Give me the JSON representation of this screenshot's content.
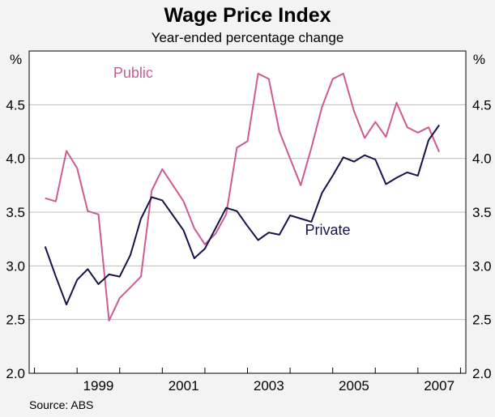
{
  "chart_data": {
    "type": "line",
    "title": "Wage Price Index",
    "subtitle": "Year-ended percentage change",
    "y_unit": "%",
    "source": "Source: ABS",
    "ylim": [
      2.0,
      5.0
    ],
    "y_ticks": [
      "2.0",
      "2.5",
      "3.0",
      "3.5",
      "4.0",
      "4.5"
    ],
    "xlim": [
      1997.875,
      2008.125
    ],
    "x_ticks": [
      {
        "label": "1999",
        "value": 1999.0
      },
      {
        "label": "2001",
        "value": 2001.0
      },
      {
        "label": "2003",
        "value": 2003.0
      },
      {
        "label": "2005",
        "value": 2005.0
      },
      {
        "label": "2007",
        "value": 2007.0
      }
    ],
    "grid": true,
    "series": [
      {
        "name": "Public",
        "color": "#cc5b92",
        "label_position": [
          1999.85,
          4.75
        ],
        "points": [
          [
            1998.25,
            3.63
          ],
          [
            1998.5,
            3.6
          ],
          [
            1998.75,
            4.07
          ],
          [
            1999.0,
            3.91
          ],
          [
            1999.25,
            3.51
          ],
          [
            1999.5,
            3.48
          ],
          [
            1999.75,
            2.49
          ],
          [
            2000.0,
            2.7
          ],
          [
            2000.25,
            2.8
          ],
          [
            2000.5,
            2.9
          ],
          [
            2000.75,
            3.7
          ],
          [
            2001.0,
            3.9
          ],
          [
            2001.25,
            3.75
          ],
          [
            2001.5,
            3.6
          ],
          [
            2001.75,
            3.35
          ],
          [
            2002.0,
            3.2
          ],
          [
            2002.25,
            3.3
          ],
          [
            2002.5,
            3.48
          ],
          [
            2002.75,
            4.1
          ],
          [
            2003.0,
            4.16
          ],
          [
            2003.25,
            4.79
          ],
          [
            2003.5,
            4.74
          ],
          [
            2003.75,
            4.25
          ],
          [
            2004.0,
            4.0
          ],
          [
            2004.25,
            3.75
          ],
          [
            2004.5,
            4.1
          ],
          [
            2004.75,
            4.48
          ],
          [
            2005.0,
            4.74
          ],
          [
            2005.25,
            4.79
          ],
          [
            2005.5,
            4.44
          ],
          [
            2005.75,
            4.19
          ],
          [
            2006.0,
            4.34
          ],
          [
            2006.25,
            4.2
          ],
          [
            2006.5,
            4.52
          ],
          [
            2006.75,
            4.29
          ],
          [
            2007.0,
            4.24
          ],
          [
            2007.25,
            4.29
          ],
          [
            2007.5,
            4.06
          ]
        ]
      },
      {
        "name": "Private",
        "color": "#14144a",
        "label_position": [
          2004.35,
          3.29
        ],
        "points": [
          [
            1998.25,
            3.18
          ],
          [
            1998.5,
            2.9
          ],
          [
            1998.75,
            2.64
          ],
          [
            1999.0,
            2.87
          ],
          [
            1999.25,
            2.97
          ],
          [
            1999.5,
            2.83
          ],
          [
            1999.75,
            2.92
          ],
          [
            2000.0,
            2.9
          ],
          [
            2000.25,
            3.1
          ],
          [
            2000.5,
            3.44
          ],
          [
            2000.75,
            3.64
          ],
          [
            2001.0,
            3.61
          ],
          [
            2001.25,
            3.47
          ],
          [
            2001.5,
            3.33
          ],
          [
            2001.75,
            3.07
          ],
          [
            2002.0,
            3.16
          ],
          [
            2002.25,
            3.35
          ],
          [
            2002.5,
            3.54
          ],
          [
            2002.75,
            3.51
          ],
          [
            2003.0,
            3.37
          ],
          [
            2003.25,
            3.24
          ],
          [
            2003.5,
            3.31
          ],
          [
            2003.75,
            3.29
          ],
          [
            2004.0,
            3.47
          ],
          [
            2004.25,
            3.44
          ],
          [
            2004.5,
            3.41
          ],
          [
            2004.75,
            3.68
          ],
          [
            2005.0,
            3.84
          ],
          [
            2005.25,
            4.01
          ],
          [
            2005.5,
            3.97
          ],
          [
            2005.75,
            4.03
          ],
          [
            2006.0,
            3.99
          ],
          [
            2006.25,
            3.76
          ],
          [
            2006.5,
            3.82
          ],
          [
            2006.75,
            3.87
          ],
          [
            2007.0,
            3.84
          ],
          [
            2007.25,
            4.17
          ],
          [
            2007.5,
            4.31
          ]
        ]
      }
    ]
  }
}
